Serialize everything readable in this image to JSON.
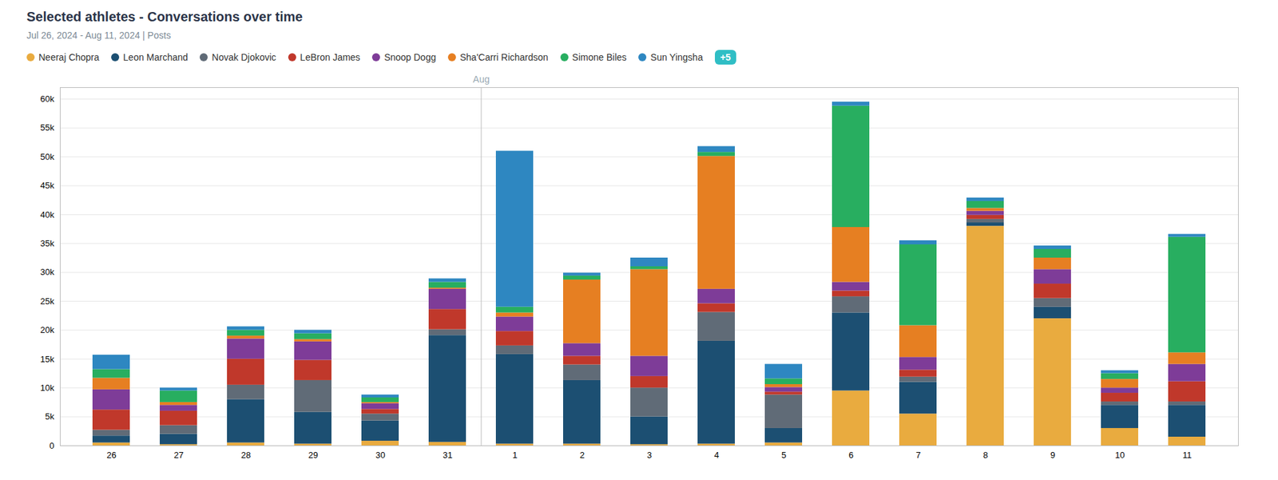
{
  "chart_data": {
    "type": "bar",
    "stacked": true,
    "title": "Selected athletes - Conversations over time",
    "subtitle": "Jul 26, 2024 - Aug 11, 2024  |  Posts",
    "categories": [
      "26",
      "27",
      "28",
      "29",
      "30",
      "31",
      "1",
      "2",
      "3",
      "4",
      "5",
      "6",
      "7",
      "8",
      "9",
      "10",
      "11"
    ],
    "series": [
      {
        "name": "Neeraj Chopra",
        "color": "#E9AB3F",
        "values": [
          500,
          200,
          500,
          300,
          800,
          600,
          300,
          300,
          200,
          300,
          500,
          9500,
          5500,
          38000,
          22000,
          3000,
          1500
        ]
      },
      {
        "name": "Leon Marchand",
        "color": "#1C4F72",
        "values": [
          1200,
          1800,
          7500,
          5500,
          3500,
          18500,
          15500,
          11000,
          4800,
          17800,
          2500,
          13500,
          5500,
          600,
          2000,
          4000,
          5500
        ]
      },
      {
        "name": "Novak Djokovic",
        "color": "#606B77",
        "values": [
          1000,
          1500,
          2500,
          5500,
          1200,
          1000,
          1500,
          2700,
          5000,
          5000,
          5800,
          2800,
          900,
          600,
          1500,
          600,
          600
        ]
      },
      {
        "name": "LeBron James",
        "color": "#C0382B",
        "values": [
          3500,
          2500,
          4500,
          3500,
          800,
          3500,
          2500,
          1500,
          2000,
          1500,
          500,
          1000,
          1200,
          700,
          2500,
          1500,
          3500
        ]
      },
      {
        "name": "Snoop Dogg",
        "color": "#7E3C98",
        "values": [
          3500,
          1000,
          3500,
          3200,
          1000,
          3500,
          2500,
          2200,
          3500,
          2500,
          800,
          1500,
          2200,
          700,
          2500,
          900,
          3000
        ]
      },
      {
        "name": "Sha'Carri Richardson",
        "color": "#E67F22",
        "values": [
          2000,
          500,
          500,
          400,
          200,
          200,
          700,
          11000,
          15000,
          23000,
          500,
          9500,
          5500,
          500,
          2000,
          1500,
          2000
        ]
      },
      {
        "name": "Simone Biles",
        "color": "#28AE60",
        "values": [
          1500,
          2000,
          1000,
          1000,
          800,
          1000,
          1000,
          700,
          500,
          700,
          1000,
          21000,
          14000,
          1200,
          1500,
          1000,
          20000
        ]
      },
      {
        "name": "Sun Yingsha",
        "color": "#2E87C1",
        "values": [
          2500,
          500,
          600,
          600,
          500,
          600,
          27000,
          500,
          1500,
          1000,
          2500,
          700,
          700,
          600,
          600,
          500,
          500
        ]
      }
    ],
    "ylim": [
      0,
      62000
    ],
    "yticks": [
      0,
      {
        "value": 5000,
        "label": "5k"
      },
      {
        "value": 10000,
        "label": "10k"
      },
      {
        "value": 15000,
        "label": "15k"
      },
      {
        "value": 20000,
        "label": "20k"
      },
      {
        "value": 25000,
        "label": "25k"
      },
      {
        "value": 30000,
        "label": "30k"
      },
      {
        "value": 35000,
        "label": "35k"
      },
      {
        "value": 40000,
        "label": "40k"
      },
      {
        "value": 45000,
        "label": "45k"
      },
      {
        "value": 50000,
        "label": "50k"
      },
      {
        "value": 55000,
        "label": "55k"
      },
      {
        "value": 60000,
        "label": "60k"
      }
    ],
    "grid": true,
    "legend": "top",
    "annotations": [
      {
        "text": "Aug",
        "x": "1"
      },
      {
        "text": "+5",
        "color": "#30BEC5"
      }
    ]
  }
}
